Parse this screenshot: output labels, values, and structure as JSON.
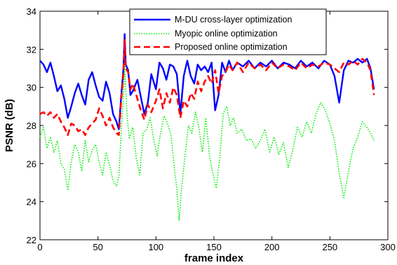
{
  "chart_data": {
    "type": "line",
    "xlabel": "frame index",
    "ylabel": "PSNR (dB)",
    "xlim": [
      0,
      300
    ],
    "ylim": [
      22,
      34
    ],
    "xticks": [
      0,
      50,
      100,
      150,
      200,
      250,
      300
    ],
    "yticks": [
      22,
      24,
      26,
      28,
      30,
      32,
      34
    ],
    "grid": false,
    "legend_position": "top-center",
    "series": [
      {
        "name": "M-DU cross-layer optimization",
        "color": "#0000ff",
        "style": "solid",
        "x": [
          0,
          3,
          6,
          9,
          12,
          15,
          18,
          21,
          24,
          27,
          30,
          33,
          36,
          39,
          42,
          45,
          48,
          51,
          54,
          57,
          60,
          63,
          66,
          68,
          70,
          72,
          73,
          74,
          76,
          78,
          80,
          84,
          87,
          90,
          93,
          96,
          100,
          103,
          106,
          109,
          112,
          115,
          118,
          121,
          124,
          127,
          130,
          133,
          136,
          139,
          142,
          145,
          148,
          151,
          154,
          157,
          160,
          163,
          166,
          170,
          175,
          180,
          185,
          190,
          195,
          200,
          205,
          210,
          215,
          220,
          225,
          230,
          235,
          240,
          245,
          250,
          254,
          258,
          262,
          266,
          270,
          274,
          278,
          282,
          285,
          288
        ],
        "values": [
          31.4,
          31.2,
          30.8,
          31.3,
          30.6,
          29.8,
          30.1,
          29.4,
          28.4,
          29.0,
          29.7,
          30.2,
          29.6,
          29.1,
          30.4,
          30.8,
          30.1,
          29.5,
          29.3,
          30.3,
          29.7,
          28.6,
          28.2,
          27.8,
          29.5,
          31.0,
          32.8,
          31.2,
          30.9,
          29.6,
          29.8,
          30.4,
          29.5,
          28.6,
          29.2,
          30.7,
          29.9,
          31.3,
          31.0,
          30.4,
          31.2,
          31.1,
          30.7,
          28.6,
          30.6,
          31.4,
          30.6,
          30.2,
          31.2,
          30.9,
          31.1,
          30.8,
          31.3,
          28.8,
          29.6,
          31.3,
          30.8,
          31.4,
          30.9,
          31.3,
          31.1,
          31.4,
          31.0,
          31.3,
          31.1,
          31.4,
          31.0,
          31.3,
          31.2,
          31.0,
          31.4,
          31.1,
          31.3,
          31.0,
          31.4,
          31.2,
          30.6,
          29.2,
          30.9,
          31.4,
          31.3,
          31.5,
          31.3,
          31.5,
          31.0,
          29.9
        ]
      },
      {
        "name": "Myopic online optimization",
        "color": "#00ee00",
        "style": "dotted",
        "x": [
          0,
          3,
          6,
          9,
          12,
          15,
          18,
          21,
          24,
          27,
          30,
          33,
          36,
          39,
          42,
          45,
          48,
          51,
          54,
          57,
          60,
          63,
          66,
          68,
          70,
          72,
          73,
          75,
          77,
          80,
          83,
          86,
          89,
          92,
          95,
          98,
          101,
          104,
          107,
          110,
          113,
          116,
          118,
          120,
          122,
          125,
          128,
          131,
          134,
          137,
          140,
          143,
          146,
          149,
          152,
          155,
          158,
          161,
          164,
          167,
          170,
          174,
          178,
          182,
          186,
          190,
          194,
          198,
          202,
          206,
          210,
          214,
          218,
          222,
          226,
          230,
          234,
          238,
          242,
          246,
          250,
          254,
          258,
          262,
          266,
          270,
          274,
          278,
          282,
          285,
          288
        ],
        "values": [
          27.4,
          27.9,
          26.8,
          27.4,
          26.6,
          27.2,
          26.0,
          25.7,
          24.6,
          26.1,
          27.0,
          26.6,
          25.6,
          27.2,
          26.1,
          26.7,
          27.0,
          26.1,
          25.4,
          26.6,
          25.9,
          25.1,
          24.8,
          25.3,
          27.6,
          29.5,
          31.2,
          28.6,
          27.3,
          27.9,
          26.3,
          25.4,
          27.6,
          27.8,
          28.4,
          27.3,
          26.4,
          27.6,
          28.5,
          28.1,
          27.5,
          25.7,
          24.7,
          23.0,
          24.6,
          26.4,
          28.0,
          27.6,
          28.7,
          27.9,
          26.6,
          28.4,
          26.5,
          25.5,
          24.7,
          26.3,
          28.6,
          29.0,
          28.0,
          28.4,
          27.6,
          27.8,
          27.2,
          27.3,
          26.8,
          27.2,
          27.8,
          26.6,
          27.4,
          26.5,
          27.1,
          25.8,
          26.7,
          27.9,
          27.4,
          28.2,
          27.6,
          28.6,
          29.2,
          28.8,
          28.1,
          27.2,
          25.5,
          24.2,
          25.6,
          26.8,
          27.4,
          28.2,
          27.9,
          27.6,
          27.2
        ]
      },
      {
        "name": "Proposed online optimization",
        "color": "#ff0000",
        "style": "dashed",
        "x": [
          0,
          3,
          6,
          9,
          12,
          15,
          18,
          21,
          24,
          27,
          30,
          33,
          36,
          39,
          42,
          45,
          48,
          51,
          54,
          57,
          60,
          63,
          66,
          68,
          70,
          72,
          73,
          74,
          76,
          78,
          80,
          84,
          87,
          90,
          93,
          96,
          100,
          103,
          106,
          109,
          112,
          115,
          118,
          121,
          124,
          127,
          130,
          133,
          136,
          139,
          142,
          145,
          148,
          151,
          154,
          157,
          160,
          163,
          166,
          170,
          175,
          180,
          185,
          190,
          195,
          200,
          205,
          210,
          215,
          220,
          225,
          230,
          235,
          240,
          245,
          250,
          254,
          258,
          262,
          266,
          270,
          274,
          278,
          282,
          285,
          288
        ],
        "values": [
          28.6,
          28.7,
          28.5,
          28.7,
          28.4,
          28.6,
          28.2,
          27.9,
          27.5,
          28.1,
          28.0,
          27.7,
          27.8,
          27.5,
          27.9,
          28.1,
          28.3,
          28.9,
          28.5,
          28.0,
          28.4,
          27.9,
          27.6,
          27.5,
          29.3,
          30.8,
          32.5,
          31.0,
          30.8,
          29.9,
          30.2,
          29.4,
          28.8,
          28.3,
          29.1,
          28.7,
          29.3,
          29.9,
          28.9,
          29.7,
          29.2,
          30.0,
          29.6,
          28.4,
          29.3,
          29.0,
          29.7,
          29.4,
          30.3,
          29.8,
          30.3,
          30.6,
          30.2,
          30.9,
          29.7,
          30.6,
          30.8,
          31.2,
          30.9,
          31.3,
          30.8,
          31.3,
          31.0,
          31.2,
          30.9,
          31.3,
          31.0,
          31.2,
          31.1,
          30.9,
          31.3,
          31.0,
          31.2,
          31.1,
          31.3,
          31.2,
          31.0,
          30.8,
          31.3,
          31.2,
          31.4,
          31.2,
          31.5,
          31.3,
          30.9,
          29.6
        ]
      }
    ]
  }
}
